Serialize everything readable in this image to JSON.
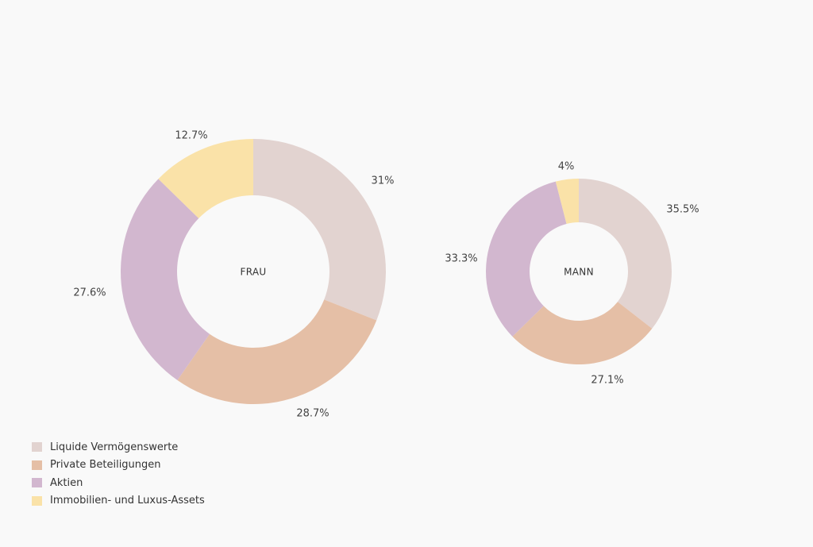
{
  "legend": [
    {
      "label": "Liquide Vermögenswerte",
      "color": "#e2d3d0"
    },
    {
      "label": "Private Beteiligungen",
      "color": "#e5bfa6"
    },
    {
      "label": "Aktien",
      "color": "#d2b7cf"
    },
    {
      "label": "Immobilien- und Luxus-Assets",
      "color": "#fae2a8"
    }
  ],
  "chart_data": [
    {
      "type": "pie",
      "variant": "donut",
      "center_label": "FRAU",
      "categories": [
        "Liquide Vermögenswerte",
        "Private Beteiligungen",
        "Aktien",
        "Immobilien- und Luxus-Assets"
      ],
      "values": [
        31,
        28.7,
        27.6,
        12.7
      ],
      "value_labels": [
        "31%",
        "28.7%",
        "27.6%",
        "12.7%"
      ]
    },
    {
      "type": "pie",
      "variant": "donut",
      "center_label": "MANN",
      "categories": [
        "Liquide Vermögenswerte",
        "Private Beteiligungen",
        "Aktien",
        "Immobilien- und Luxus-Assets"
      ],
      "values": [
        35.5,
        27.1,
        33.3,
        4
      ],
      "value_labels": [
        "35.5%",
        "27.1%",
        "33.3%",
        "4%"
      ]
    }
  ]
}
